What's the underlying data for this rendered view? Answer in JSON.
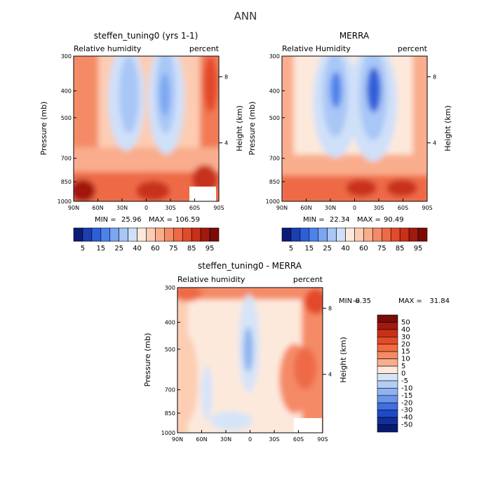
{
  "figure_title": "ANN",
  "chart_data": [
    {
      "id": "model",
      "type": "heatmap",
      "title": "steffen_tuning0 (yrs 1-1)",
      "variable": "Relative humidity",
      "units": "percent",
      "xlabel": "",
      "ylabel": "Pressure (mb)",
      "y2label": "Height (km)",
      "x_ticks": [
        "90N",
        "60N",
        "30N",
        "0",
        "30S",
        "60S",
        "90S"
      ],
      "y_ticks": [
        "300",
        "400",
        "500",
        "700",
        "850",
        "1000"
      ],
      "y2_ticks": [
        "8",
        "4"
      ],
      "min_label": "MIN =",
      "min_value": "25.96",
      "max_label": "MAX =",
      "max_value": "106.59",
      "colorbar_labels": [
        "5",
        "15",
        "25",
        "40",
        "60",
        "75",
        "85",
        "95"
      ],
      "colorbar_colors": [
        "#0a1b7a",
        "#1a3fb0",
        "#2e5fd9",
        "#4d82eb",
        "#7aa6f2",
        "#a8c6f6",
        "#cfe0f9",
        "#fde9dc",
        "#fccdb3",
        "#f9ad8c",
        "#f58a66",
        "#ee6a46",
        "#e24a2a",
        "#c8301a",
        "#a2190f",
        "#7a0b07"
      ]
    },
    {
      "id": "obs",
      "type": "heatmap",
      "title": "MERRA",
      "variable": "Relative Humidity",
      "units": "percent",
      "xlabel": "",
      "ylabel": "Pressure (mb)",
      "y2label": "Height (km)",
      "x_ticks": [
        "90N",
        "60N",
        "30N",
        "0",
        "30S",
        "60S",
        "90S"
      ],
      "y_ticks": [
        "300",
        "400",
        "500",
        "700",
        "850",
        "1000"
      ],
      "y2_ticks": [
        "8",
        "4"
      ],
      "min_label": "MIN =",
      "min_value": "22.34",
      "max_label": "MAX =",
      "max_value": "90.49",
      "colorbar_labels": [
        "5",
        "15",
        "25",
        "40",
        "60",
        "75",
        "85",
        "95"
      ],
      "colorbar_colors": [
        "#0a1b7a",
        "#1a3fb0",
        "#2e5fd9",
        "#4d82eb",
        "#7aa6f2",
        "#a8c6f6",
        "#cfe0f9",
        "#fde9dc",
        "#fccdb3",
        "#f9ad8c",
        "#f58a66",
        "#ee6a46",
        "#e24a2a",
        "#c8301a",
        "#a2190f",
        "#7a0b07"
      ]
    },
    {
      "id": "diff",
      "type": "heatmap",
      "title": "steffen_tuning0 - MERRA",
      "variable": "Relative humidity",
      "units": "percent",
      "xlabel": "",
      "ylabel": "Pressure (mb)",
      "y2label": "Height (km)",
      "x_ticks": [
        "90N",
        "60N",
        "30N",
        "0",
        "30S",
        "60S",
        "90S"
      ],
      "y_ticks": [
        "300",
        "400",
        "500",
        "700",
        "850",
        "1000"
      ],
      "y2_ticks": [
        "8",
        "4"
      ],
      "min_label": "MIN =",
      "min_value": "-8.35",
      "max_label": "MAX =",
      "max_value": "31.84",
      "colorbar_labels": [
        "50",
        "40",
        "30",
        "20",
        "15",
        "10",
        "5",
        "0",
        "-5",
        "-10",
        "-15",
        "-20",
        "-30",
        "-40",
        "-50"
      ],
      "colorbar_colors": [
        "#7a0b07",
        "#a2190f",
        "#c8301a",
        "#e24a2a",
        "#f26a3e",
        "#f58a66",
        "#f9ad8c",
        "#fde9dc",
        "#d6e4f8",
        "#b4cdf5",
        "#8fb2f0",
        "#6a95ea",
        "#3f6fe0",
        "#1f4ac6",
        "#10309c",
        "#081a70"
      ]
    }
  ]
}
